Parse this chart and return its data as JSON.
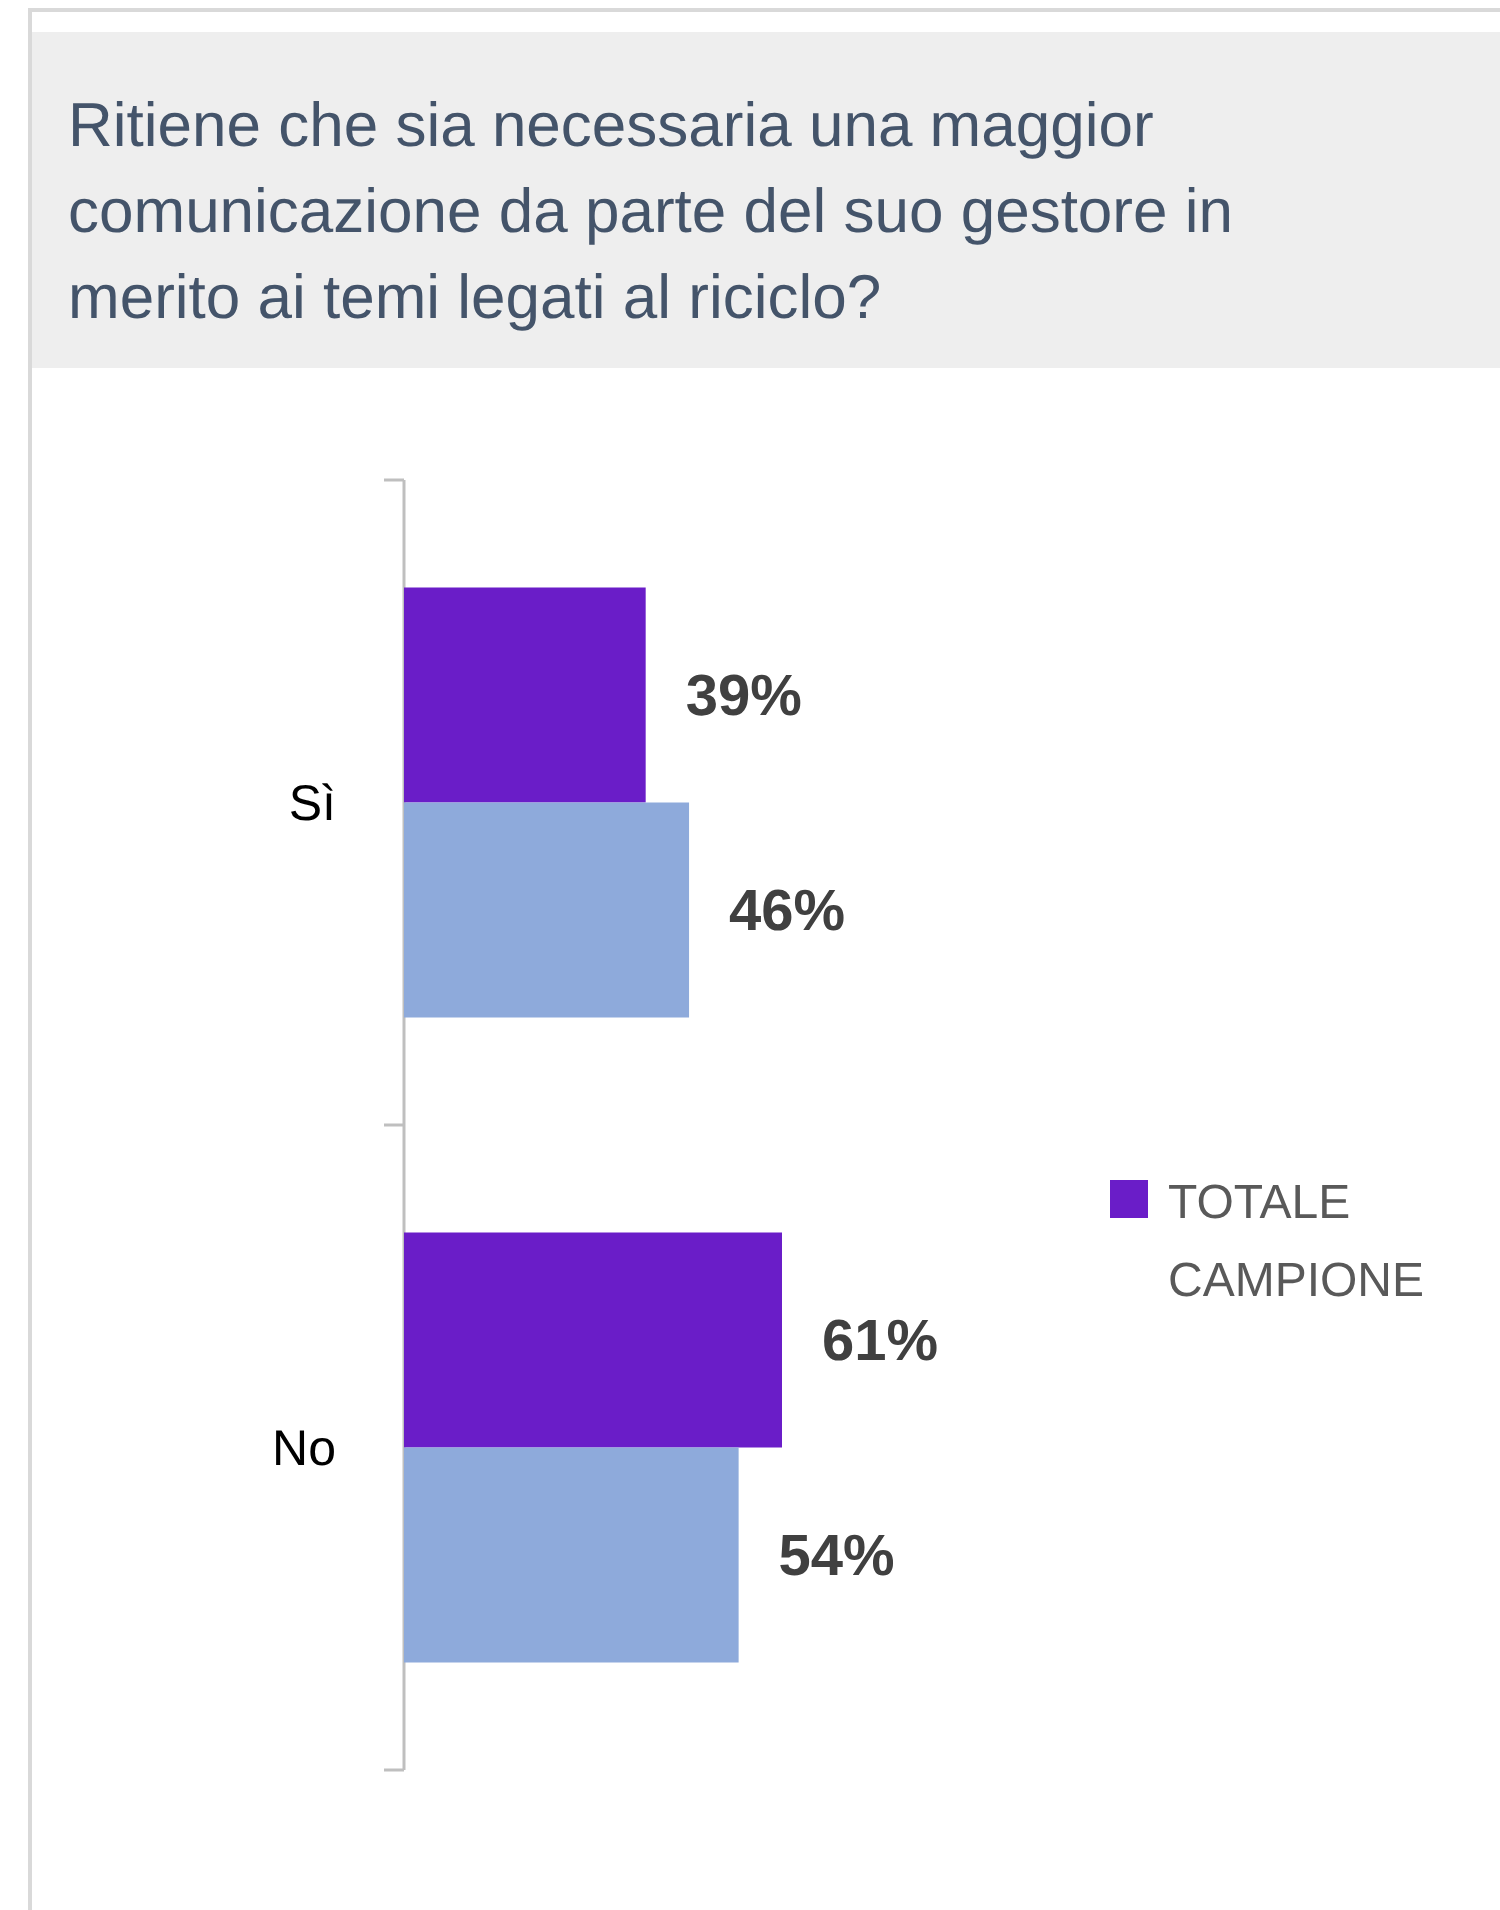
{
  "chart_data": {
    "type": "bar",
    "orientation": "horizontal",
    "title": "Ritiene che sia necessaria una maggior comunicazione da parte del suo gestore in merito ai temi legati al riciclo?",
    "categories": [
      "Sì",
      "No"
    ],
    "series": [
      {
        "name": "TOTALE CAMPIONE",
        "color": "#6a1dc8",
        "values": [
          39,
          61
        ],
        "value_labels": [
          "39%",
          "61%"
        ]
      },
      {
        "color": "#8eaadb",
        "values": [
          46,
          54
        ],
        "value_labels": [
          "46%",
          "54%"
        ]
      }
    ],
    "legend": "right"
  }
}
